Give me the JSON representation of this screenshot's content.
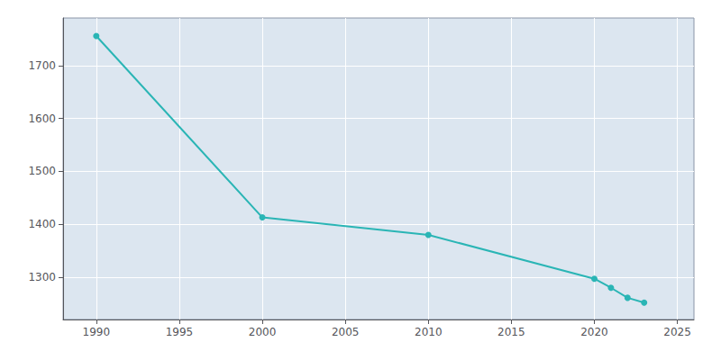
{
  "chart_data": {
    "type": "line",
    "x": [
      1990,
      2000,
      2010,
      2020,
      2021,
      2022,
      2023
    ],
    "values": [
      1756,
      1413,
      1380,
      1297,
      1280,
      1261,
      1252
    ],
    "color": "#2ab5b5",
    "marker": "circle",
    "xlim": [
      1988,
      2026
    ],
    "xticks": [
      1990,
      1995,
      2000,
      2005,
      2010,
      2015,
      2020,
      2025
    ],
    "ylim": [
      1220,
      1790
    ],
    "yticks": [
      1300,
      1400,
      1500,
      1600,
      1700
    ],
    "grid": true
  }
}
